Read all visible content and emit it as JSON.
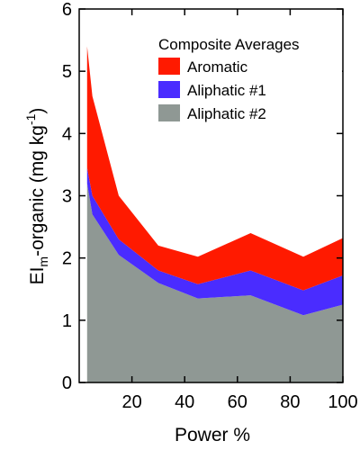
{
  "chart_data": {
    "type": "stacked_area",
    "ylabel_parts": {
      "main": "EI",
      "sub": "m",
      "rest": "-organic (mg kg",
      "sup": "-1",
      "end": ")"
    },
    "xlabel": "Power %",
    "legend_title": "Composite Averages",
    "legend": "upper right",
    "x": [
      3,
      5,
      15,
      30,
      45,
      65,
      85,
      100
    ],
    "series": [
      {
        "name": "Aromatic",
        "color": "#ff1a00",
        "values": [
          1.95,
          1.6,
          0.7,
          0.4,
          0.44,
          0.6,
          0.54,
          0.6
        ]
      },
      {
        "name": "Aliphatic #1",
        "color": "#4a2cff",
        "values": [
          0.25,
          0.3,
          0.25,
          0.2,
          0.23,
          0.4,
          0.4,
          0.47
        ]
      },
      {
        "name": "Aliphatic #2",
        "color": "#8f9894",
        "values": [
          3.2,
          2.7,
          2.05,
          1.6,
          1.35,
          1.4,
          1.08,
          1.25
        ]
      }
    ],
    "xlim": [
      0,
      100
    ],
    "xticks": [
      20,
      40,
      60,
      80,
      100
    ],
    "ylim": [
      0,
      6
    ],
    "yticks": [
      0,
      1,
      2,
      3,
      4,
      5,
      6
    ]
  }
}
